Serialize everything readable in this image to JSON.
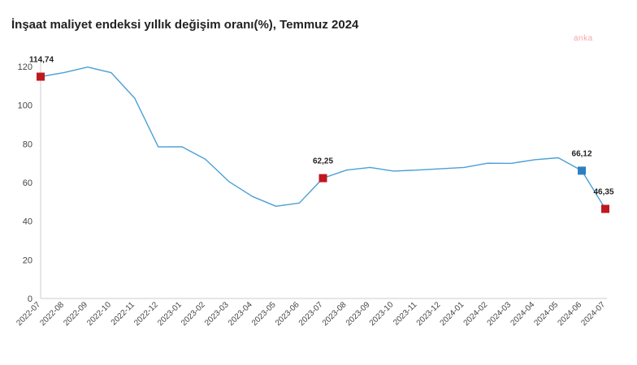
{
  "chart_data": {
    "type": "line",
    "title": "İnşaat maliyet endeksi yıllık değişim oranı(%), Temmuz 2024",
    "xlabel": "",
    "ylabel": "",
    "ylim": [
      0,
      120
    ],
    "y_ticks": [
      "0",
      "20",
      "40",
      "60",
      "80",
      "100",
      "120"
    ],
    "grid": false,
    "categories": [
      "2022-07",
      "2022-08",
      "2022-09",
      "2022-10",
      "2022-11",
      "2022-12",
      "2023-01",
      "2023-02",
      "2023-03",
      "2023-04",
      "2023-05",
      "2023-06",
      "2023-07",
      "2023-08",
      "2023-09",
      "2023-10",
      "2023-11",
      "2023-12",
      "2024-01",
      "2024-02",
      "2024-03",
      "2024-04",
      "2024-05",
      "2024-06",
      "2024-07"
    ],
    "series": [
      {
        "values": [
          114.74,
          116.9,
          119.7,
          116.8,
          103.6,
          78.4,
          78.5,
          72.1,
          60.5,
          52.8,
          47.7,
          49.4,
          62.25,
          66.4,
          67.8,
          65.9,
          66.4,
          67.1,
          67.8,
          70.0,
          69.9,
          71.8,
          72.8,
          66.12,
          46.35
        ],
        "color": "#4aa0d5"
      }
    ],
    "highlights": [
      {
        "index": 0,
        "label": "114,74",
        "color": "#c0181f"
      },
      {
        "index": 12,
        "label": "62,25",
        "color": "#c0181f"
      },
      {
        "index": 23,
        "label": "66,12",
        "color": "#2e7fc1"
      },
      {
        "index": 24,
        "label": "46,35",
        "color": "#c0181f"
      }
    ]
  },
  "watermark": "anka"
}
